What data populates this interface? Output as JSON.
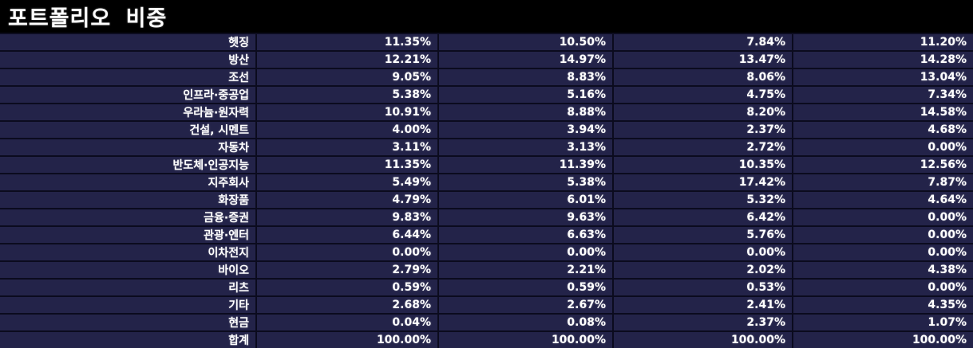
{
  "title": "포트폴리오 비중",
  "colors": {
    "page_background": "#000000",
    "row_background": "#232349",
    "grid_line": "#0b0b1e",
    "text": "#ffffff"
  },
  "table": {
    "rows": [
      {
        "label": "헷징",
        "values": [
          "11.35%",
          "10.50%",
          "7.84%",
          "11.20%"
        ]
      },
      {
        "label": "방산",
        "values": [
          "12.21%",
          "14.97%",
          "13.47%",
          "14.28%"
        ]
      },
      {
        "label": "조선",
        "values": [
          "9.05%",
          "8.83%",
          "8.06%",
          "13.04%"
        ]
      },
      {
        "label": "인프라·중공업",
        "values": [
          "5.38%",
          "5.16%",
          "4.75%",
          "7.34%"
        ]
      },
      {
        "label": "우라늄·원자력",
        "values": [
          "10.91%",
          "8.88%",
          "8.20%",
          "14.58%"
        ]
      },
      {
        "label": "건설, 시멘트",
        "values": [
          "4.00%",
          "3.94%",
          "2.37%",
          "4.68%"
        ]
      },
      {
        "label": "자동차",
        "values": [
          "3.11%",
          "3.13%",
          "2.72%",
          "0.00%"
        ]
      },
      {
        "label": "반도체·인공지능",
        "values": [
          "11.35%",
          "11.39%",
          "10.35%",
          "12.56%"
        ]
      },
      {
        "label": "지주회사",
        "values": [
          "5.49%",
          "5.38%",
          "17.42%",
          "7.87%"
        ]
      },
      {
        "label": "화장품",
        "values": [
          "4.79%",
          "6.01%",
          "5.32%",
          "4.64%"
        ]
      },
      {
        "label": "금융·증권",
        "values": [
          "9.83%",
          "9.63%",
          "6.42%",
          "0.00%"
        ]
      },
      {
        "label": "관광·엔터",
        "values": [
          "6.44%",
          "6.63%",
          "5.76%",
          "0.00%"
        ]
      },
      {
        "label": "이차전지",
        "values": [
          "0.00%",
          "0.00%",
          "0.00%",
          "0.00%"
        ]
      },
      {
        "label": "바이오",
        "values": [
          "2.79%",
          "2.21%",
          "2.02%",
          "4.38%"
        ]
      },
      {
        "label": "리츠",
        "values": [
          "0.59%",
          "0.59%",
          "0.53%",
          "0.00%"
        ]
      },
      {
        "label": "기타",
        "values": [
          "2.68%",
          "2.67%",
          "2.41%",
          "4.35%"
        ]
      },
      {
        "label": "현금",
        "values": [
          "0.04%",
          "0.08%",
          "2.37%",
          "1.07%"
        ]
      },
      {
        "label": "합계",
        "values": [
          "100.00%",
          "100.00%",
          "100.00%",
          "100.00%"
        ]
      }
    ]
  },
  "chart_data": {
    "type": "table",
    "title": "포트폴리오 비중",
    "row_labels": [
      "헷징",
      "방산",
      "조선",
      "인프라·중공업",
      "우라늄·원자력",
      "건설, 시멘트",
      "자동차",
      "반도체·인공지능",
      "지주회사",
      "화장품",
      "금융·증권",
      "관광·엔터",
      "이차전지",
      "바이오",
      "리츠",
      "기타",
      "현금",
      "합계"
    ],
    "series": [
      {
        "name": "col-1",
        "values": [
          11.35,
          12.21,
          9.05,
          5.38,
          10.91,
          4.0,
          3.11,
          11.35,
          5.49,
          4.79,
          9.83,
          6.44,
          0.0,
          2.79,
          0.59,
          2.68,
          0.04,
          100.0
        ]
      },
      {
        "name": "col-2",
        "values": [
          10.5,
          14.97,
          8.83,
          5.16,
          8.88,
          3.94,
          3.13,
          11.39,
          5.38,
          6.01,
          9.63,
          6.63,
          0.0,
          2.21,
          0.59,
          2.67,
          0.08,
          100.0
        ]
      },
      {
        "name": "col-3",
        "values": [
          7.84,
          13.47,
          8.06,
          4.75,
          8.2,
          2.37,
          2.72,
          10.35,
          17.42,
          5.32,
          6.42,
          5.76,
          0.0,
          2.02,
          0.53,
          2.41,
          2.37,
          100.0
        ]
      },
      {
        "name": "col-4",
        "values": [
          11.2,
          14.28,
          13.04,
          7.34,
          14.58,
          4.68,
          0.0,
          12.56,
          7.87,
          4.64,
          0.0,
          0.0,
          0.0,
          4.38,
          0.0,
          4.35,
          1.07,
          100.0
        ]
      }
    ],
    "unit": "%"
  }
}
